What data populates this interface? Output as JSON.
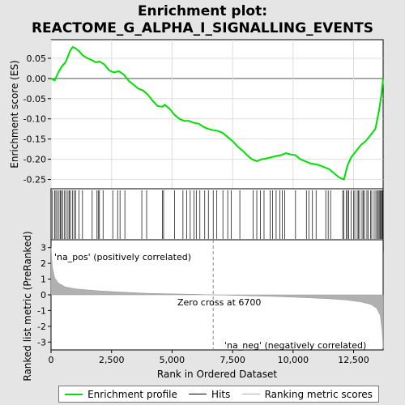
{
  "chart_data": {
    "type": "line",
    "title_line1": "Enrichment plot:",
    "title_line2": "REACTOME_G_ALPHA_I_SIGNALLING_EVENTS",
    "es_ylabel": "Enrichment score (ES)",
    "es_yticks": [
      "0.05",
      "0.00",
      "-0.05",
      "-0.10",
      "-0.15",
      "-0.20",
      "-0.25"
    ],
    "es_ylim": [
      -0.265,
      0.088
    ],
    "es_profile": {
      "x": [
        0,
        150,
        300,
        450,
        600,
        700,
        800,
        900,
        1000,
        1150,
        1300,
        1500,
        1700,
        1850,
        2000,
        2200,
        2400,
        2600,
        2800,
        3000,
        3200,
        3400,
        3600,
        3800,
        4000,
        4200,
        4400,
        4600,
        4700,
        4900,
        5100,
        5300,
        5500,
        5700,
        5900,
        6100,
        6300,
        6500,
        6700,
        6900,
        7100,
        7300,
        7500,
        7700,
        7900,
        8100,
        8300,
        8500,
        8700,
        8900,
        9100,
        9300,
        9500,
        9700,
        9900,
        10100,
        10300,
        10500,
        10700,
        10900,
        11100,
        11300,
        11500,
        11700,
        11900,
        12100,
        12250,
        12400,
        12600,
        12800,
        13000,
        13200,
        13400,
        13550,
        13650,
        13720
      ],
      "y": [
        0.0,
        -0.005,
        0.015,
        0.03,
        0.04,
        0.055,
        0.07,
        0.078,
        0.075,
        0.068,
        0.058,
        0.05,
        0.045,
        0.04,
        0.042,
        0.035,
        0.02,
        0.015,
        0.018,
        0.01,
        -0.005,
        -0.015,
        -0.025,
        -0.03,
        -0.04,
        -0.055,
        -0.068,
        -0.07,
        -0.065,
        -0.075,
        -0.09,
        -0.1,
        -0.105,
        -0.105,
        -0.11,
        -0.112,
        -0.12,
        -0.125,
        -0.128,
        -0.13,
        -0.135,
        -0.145,
        -0.155,
        -0.168,
        -0.178,
        -0.19,
        -0.2,
        -0.205,
        -0.2,
        -0.198,
        -0.195,
        -0.192,
        -0.19,
        -0.185,
        -0.188,
        -0.19,
        -0.2,
        -0.205,
        -0.21,
        -0.212,
        -0.215,
        -0.22,
        -0.225,
        -0.235,
        -0.245,
        -0.25,
        -0.215,
        -0.195,
        -0.18,
        -0.165,
        -0.155,
        -0.14,
        -0.125,
        -0.08,
        -0.04,
        0.0
      ]
    },
    "hits_x": [
      60,
      150,
      200,
      260,
      330,
      380,
      420,
      480,
      560,
      620,
      700,
      750,
      800,
      880,
      950,
      1020,
      1150,
      1300,
      1700,
      1900,
      1950,
      2000,
      2150,
      2550,
      2750,
      2850,
      3050,
      3750,
      3950,
      4600,
      4650,
      5100,
      5450,
      5600,
      5750,
      5900,
      6000,
      6150,
      6350,
      6500,
      6700,
      6850,
      7100,
      7300,
      7450,
      7800,
      8350,
      8500,
      8650,
      8800,
      9050,
      9150,
      9300,
      9450,
      9550,
      9650,
      10100,
      10550,
      10650,
      10800,
      10950,
      11350,
      11450,
      11550,
      12050,
      12100,
      12200,
      12250,
      12300,
      12400,
      12500,
      12550,
      12650,
      12700,
      12750,
      12850,
      12900,
      12950,
      13050,
      13100,
      13200,
      13250,
      13350,
      13420,
      13480,
      13520,
      13560,
      13600,
      13640,
      13680,
      13700
    ],
    "metric_yticks": [
      "3",
      "2",
      "1",
      "0",
      "-1",
      "-2",
      "-3"
    ],
    "metric_ylim": [
      -3.5,
      3.5
    ],
    "metric_ylabel": "Ranked list metric (PreRanked)",
    "metric_curve": {
      "x": [
        0,
        50,
        150,
        300,
        600,
        1000,
        2000,
        3000,
        4000,
        5000,
        6000,
        6700,
        7500,
        8500,
        9500,
        10500,
        11500,
        12200,
        12800,
        13200,
        13450,
        13600,
        13680,
        13720
      ],
      "y": [
        3.0,
        1.8,
        1.1,
        0.75,
        0.5,
        0.38,
        0.25,
        0.17,
        0.1,
        0.06,
        0.03,
        0.0,
        -0.03,
        -0.07,
        -0.12,
        -0.18,
        -0.25,
        -0.33,
        -0.45,
        -0.6,
        -0.85,
        -1.3,
        -2.3,
        -3.4
      ]
    },
    "xlabel": "Rank in Ordered Dataset",
    "xticks": [
      0,
      2500,
      5000,
      7500,
      10000,
      12500
    ],
    "xtick_labels": [
      "0",
      "2,500",
      "5,000",
      "7,500",
      "10,000",
      "12,500"
    ],
    "xlim": [
      0,
      13720
    ],
    "zero_cross_label": "Zero cross at 6700",
    "zero_cross": 6700,
    "pos_label": "'na_pos' (positively correlated)",
    "neg_label": "'na_neg' (negatively correlated)",
    "legend": [
      "Enrichment profile",
      "Hits",
      "Ranking metric scores"
    ],
    "colors": {
      "profile": "#00e000",
      "hits": "#000000",
      "metric": "#b0b0b0",
      "pos_label": "#cc0000",
      "neg_label": "#0000cc"
    }
  }
}
